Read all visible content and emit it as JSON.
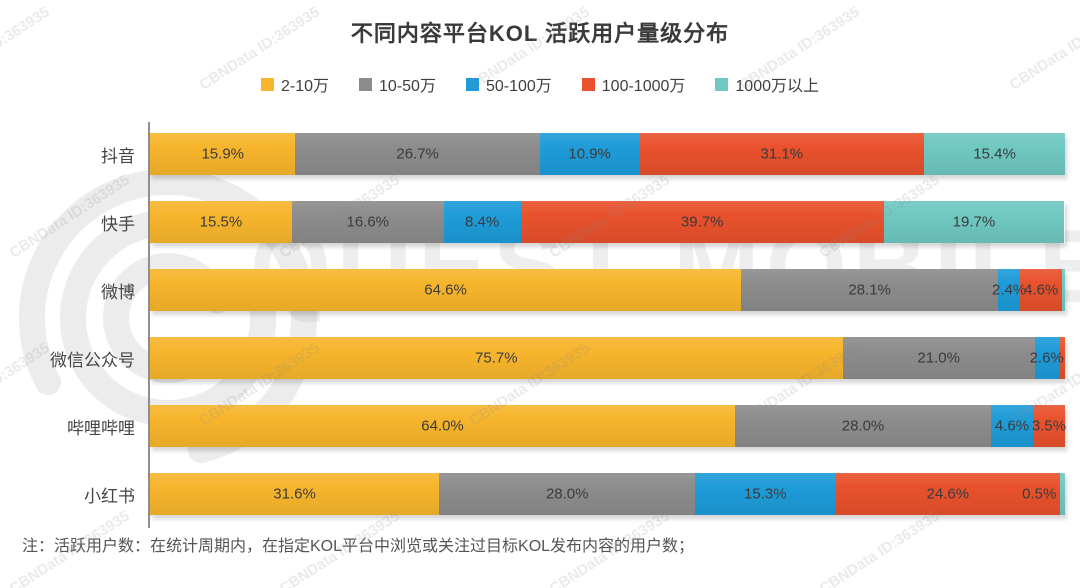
{
  "title": "不同内容平台KOL 活跃用户量级分布",
  "note": "注：活跃用户数：在统计周期内，在指定KOL平台中浏览或关注过目标KOL发布内容的用户数；",
  "watermarks": {
    "tile_text": "CBNData ID:363935",
    "brand_text": "QUEST MOBILE"
  },
  "colors": {
    "yellow": "#F7B52C",
    "gray": "#8C8C8C",
    "blue": "#1E9BD8",
    "red": "#E8512C",
    "teal": "#6FC8C1",
    "axis": "#8F8F8F",
    "label_text": "#3B3B3B"
  },
  "chart_data": {
    "type": "bar",
    "stacked": true,
    "orientation": "horizontal",
    "value_unit": "percent",
    "xlim": [
      0,
      100
    ],
    "grid": false,
    "legend_position": "top",
    "categories": [
      "抖音",
      "快手",
      "微博",
      "微信公众号",
      "哔哩哔哩",
      "小红书"
    ],
    "series": [
      {
        "name": "2-10万",
        "color": "#F7B52C",
        "values": [
          15.9,
          15.5,
          64.6,
          75.7,
          64.0,
          31.6
        ],
        "labels": [
          "15.9%",
          "15.5%",
          "64.6%",
          "75.7%",
          "64.0%",
          "31.6%"
        ]
      },
      {
        "name": "10-50万",
        "color": "#8C8C8C",
        "values": [
          26.7,
          16.6,
          28.1,
          21.0,
          28.0,
          28.0
        ],
        "labels": [
          "26.7%",
          "16.6%",
          "28.1%",
          "21.0%",
          "28.0%",
          "28.0%"
        ]
      },
      {
        "name": "50-100万",
        "color": "#1E9BD8",
        "values": [
          10.9,
          8.4,
          2.4,
          2.6,
          4.6,
          15.3
        ],
        "labels": [
          "10.9%",
          "8.4%",
          "2.4%",
          "2.6%",
          "4.6%",
          "15.3%"
        ]
      },
      {
        "name": "100-1000万",
        "color": "#E8512C",
        "values": [
          31.1,
          39.7,
          4.6,
          0.7,
          3.5,
          24.6
        ],
        "labels": [
          "31.1%",
          "39.7%",
          "4.6%",
          null,
          "3.5%",
          "24.6%"
        ]
      },
      {
        "name": "1000万以上",
        "color": "#6FC8C1",
        "values": [
          15.4,
          19.7,
          0.3,
          0.0,
          0.0,
          0.5
        ],
        "labels": [
          "15.4%",
          "19.7%",
          null,
          null,
          null,
          "0.5%"
        ]
      }
    ]
  }
}
